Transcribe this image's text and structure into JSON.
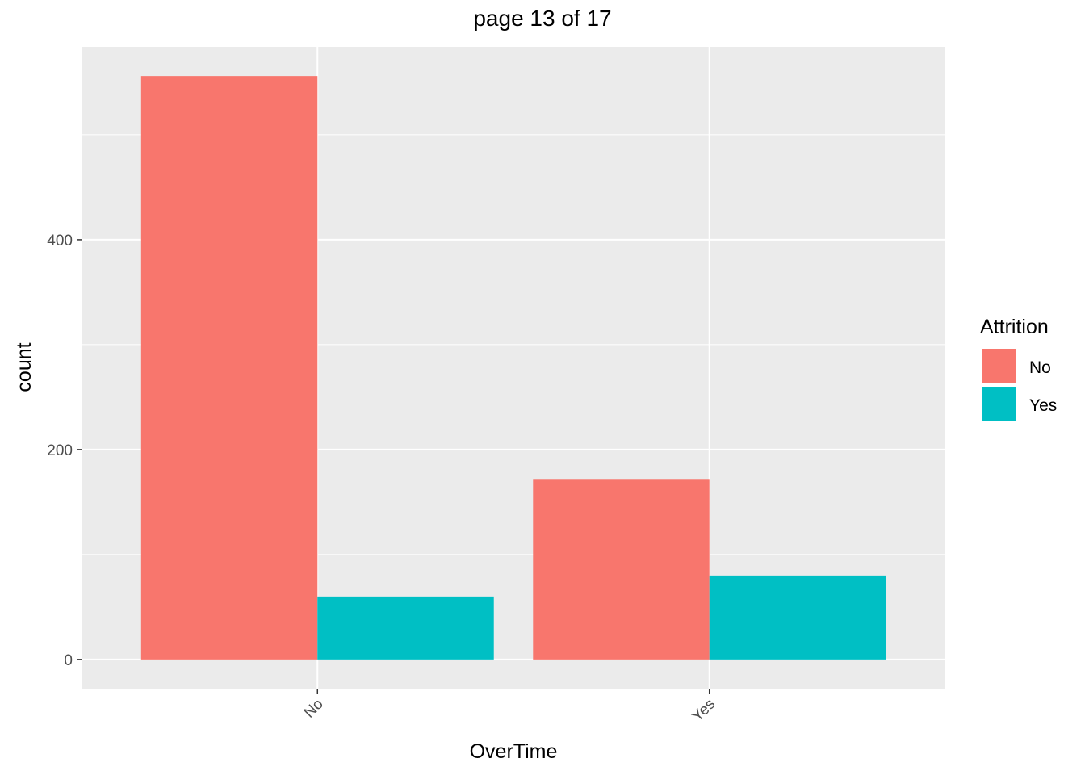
{
  "chart_data": {
    "type": "bar",
    "title": "page 13 of 17",
    "xlabel": "OverTime",
    "ylabel": "count",
    "categories": [
      "No",
      "Yes"
    ],
    "series": [
      {
        "name": "No",
        "color": "#F8766D",
        "values": [
          556,
          172
        ]
      },
      {
        "name": "Yes",
        "color": "#00BFC4",
        "values": [
          60,
          80
        ]
      }
    ],
    "yticks": [
      0,
      200,
      400
    ],
    "ylim": [
      -27.8,
      583.8
    ],
    "legend": {
      "title": "Attrition",
      "placement": "right"
    },
    "grid": true,
    "panel_background": "#EBEBEB"
  }
}
